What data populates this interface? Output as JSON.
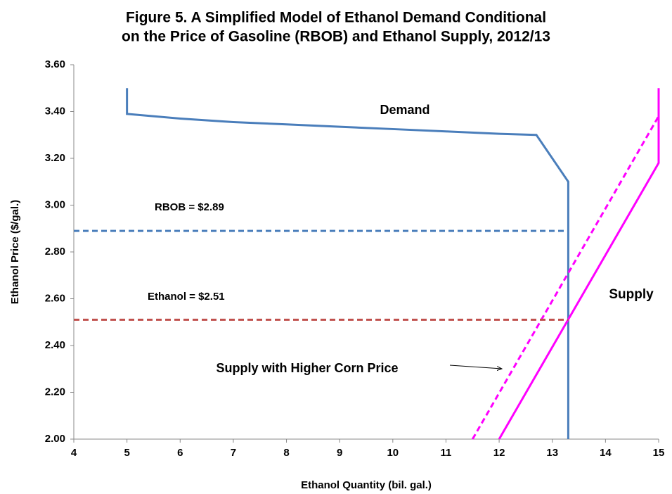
{
  "chart_data": {
    "type": "line",
    "title": [
      "Figure 5.  A Simplified Model of Ethanol Demand Conditional",
      "on the Price of Gasoline (RBOB) and Ethanol Supply, 2012/13"
    ],
    "xlabel": "Ethanol Quantity (bil. gal.)",
    "ylabel": "Ethanol Price ($/gal.)",
    "xlim": [
      4,
      15
    ],
    "xticks": [
      4,
      5,
      6,
      7,
      8,
      9,
      10,
      11,
      12,
      13,
      14,
      15
    ],
    "ylim": [
      2,
      3.6
    ],
    "yticks": [
      {
        "value": 2,
        "label": "2.00"
      },
      {
        "value": 2.2,
        "label": "2.20"
      },
      {
        "value": 2.4,
        "label": "2.40"
      },
      {
        "value": 2.6,
        "label": "2.60"
      },
      {
        "value": 2.8,
        "label": "2.80"
      },
      {
        "value": 3,
        "label": "3.00"
      },
      {
        "value": 3.2,
        "label": "3.20"
      },
      {
        "value": 3.4,
        "label": "3.40"
      },
      {
        "value": 3.6,
        "label": "3.60"
      }
    ],
    "grid": false,
    "series": [
      {
        "name": "Demand",
        "color": "#4a7ebb",
        "dashed": false,
        "x": [
          5,
          5,
          6,
          7,
          8,
          9,
          10,
          11,
          12,
          12.7,
          13.3,
          13.3
        ],
        "values": [
          3.5,
          3.39,
          3.37,
          3.355,
          3.345,
          3.335,
          3.325,
          3.315,
          3.305,
          3.3,
          3.1,
          2
        ]
      },
      {
        "name": "Supply",
        "color": "#ff00ff",
        "dashed": false,
        "x": [
          12,
          15,
          15
        ],
        "values": [
          2,
          3.18,
          3.5
        ]
      },
      {
        "name": "Supply with Higher Corn Price",
        "color": "#ff00ff",
        "dashed": true,
        "x": [
          11.5,
          15,
          15
        ],
        "values": [
          2,
          3.38,
          3.5
        ]
      },
      {
        "name": "RBOB = $2.89",
        "color": "#4a7ebb",
        "dashed": true,
        "x": [
          4,
          13.3
        ],
        "values": [
          2.89,
          2.89
        ]
      },
      {
        "name": "Ethanol = $2.51",
        "color": "#c0504d",
        "dashed": true,
        "x": [
          4,
          13.3
        ],
        "values": [
          2.51,
          2.51
        ]
      }
    ]
  }
}
